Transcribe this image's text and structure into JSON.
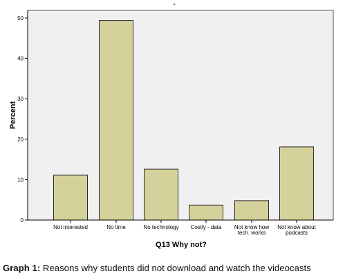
{
  "chart_data": {
    "type": "bar",
    "title": "",
    "xlabel": "Q13 Why not?",
    "ylabel": "Percent",
    "categories": [
      [
        "Not interested"
      ],
      [
        "No time"
      ],
      [
        "No technology"
      ],
      [
        "Costly - data"
      ],
      [
        "Not know how",
        "tech. works"
      ],
      [
        "Not know about",
        "podcasts"
      ]
    ],
    "values": [
      11.1,
      49.4,
      12.6,
      3.7,
      4.8,
      18.1
    ],
    "ylim": [
      0,
      52
    ],
    "yticks": [
      0,
      10,
      20,
      30,
      40,
      50
    ],
    "grid": false,
    "legend": "none",
    "colors": {
      "bar_fill": "#d5d19a",
      "bar_stroke": "#2b2b2b",
      "plot_background": "#f0f0f0",
      "axis": "#000000"
    }
  },
  "header_mark": "-",
  "caption": {
    "label": "Graph 1:",
    "text": " Reasons why students did not download and watch the videocasts"
  }
}
